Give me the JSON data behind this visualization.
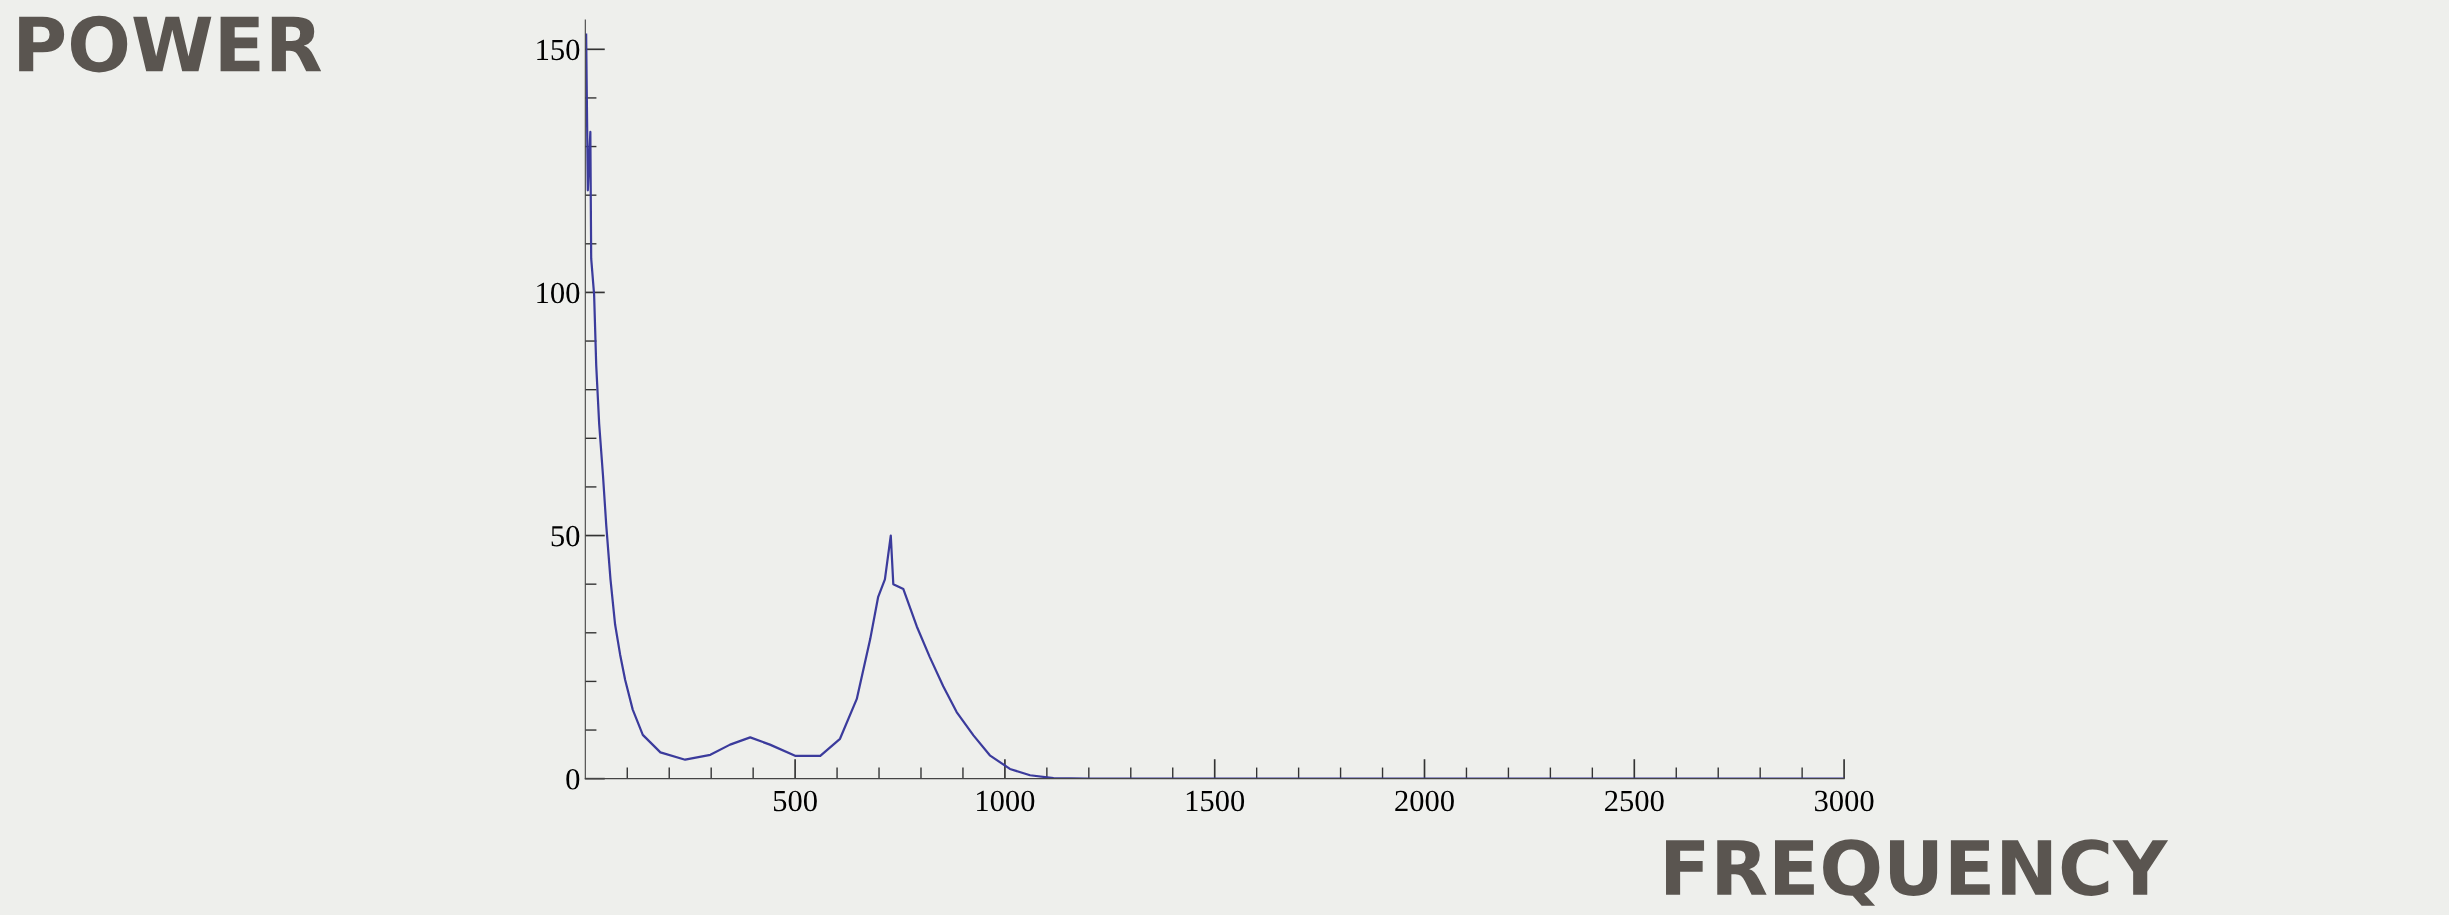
{
  "chart_data": {
    "type": "line",
    "xlabel": "FREQUENCY",
    "ylabel": "POWER",
    "x": [
      2,
      6,
      12,
      14,
      21,
      26,
      33,
      42,
      50,
      60,
      71,
      83,
      95,
      113,
      137,
      179,
      238,
      298,
      345,
      393,
      440,
      500,
      560,
      607,
      647,
      679,
      698,
      714,
      728,
      734,
      758,
      790,
      821,
      853,
      885,
      925,
      964,
      1012,
      1060,
      1116,
      1200,
      1500,
      2000,
      2500,
      3000
    ],
    "series": [
      {
        "color": "#3b3b9c",
        "values": [
          153,
          121,
          133,
          107,
          99.5,
          85,
          73,
          62.5,
          52,
          41,
          31.7,
          25.5,
          20.3,
          14.2,
          9,
          5.4,
          3.9,
          4.9,
          7,
          8.5,
          7,
          4.7,
          4.7,
          8.2,
          16.4,
          28.7,
          37.4,
          41,
          50,
          40,
          39,
          31.3,
          25,
          19,
          13.7,
          8.9,
          4.8,
          2,
          0.7,
          0.1,
          0,
          0,
          0,
          0,
          0
        ]
      }
    ],
    "xlim": [
      0,
      3000
    ],
    "ylim": [
      0,
      156
    ],
    "xticks": [
      {
        "value": 100,
        "label": null
      },
      {
        "value": 200,
        "label": null
      },
      {
        "value": 300,
        "label": null
      },
      {
        "value": 400,
        "label": null
      },
      500,
      {
        "value": 600,
        "label": null
      },
      {
        "value": 700,
        "label": null
      },
      {
        "value": 800,
        "label": null
      },
      {
        "value": 900,
        "label": null
      },
      1000,
      {
        "value": 1100,
        "label": null
      },
      {
        "value": 1200,
        "label": null
      },
      {
        "value": 1300,
        "label": null
      },
      {
        "value": 1400,
        "label": null
      },
      1500,
      {
        "value": 1600,
        "label": null
      },
      {
        "value": 1700,
        "label": null
      },
      {
        "value": 1800,
        "label": null
      },
      {
        "value": 1900,
        "label": null
      },
      2000,
      {
        "value": 2100,
        "label": null
      },
      {
        "value": 2200,
        "label": null
      },
      {
        "value": 2300,
        "label": null
      },
      {
        "value": 2400,
        "label": null
      },
      2500,
      {
        "value": 2600,
        "label": null
      },
      {
        "value": 2700,
        "label": null
      },
      {
        "value": 2800,
        "label": null
      },
      {
        "value": 2900,
        "label": null
      },
      3000
    ],
    "yticks": [
      0,
      {
        "value": 10,
        "label": null
      },
      {
        "value": 20,
        "label": null
      },
      {
        "value": 30,
        "label": null
      },
      {
        "value": 40,
        "label": null
      },
      50,
      {
        "value": 60,
        "label": null
      },
      {
        "value": 70,
        "label": null
      },
      {
        "value": 80,
        "label": null
      },
      {
        "value": 90,
        "label": null
      },
      100,
      {
        "value": 110,
        "label": null
      },
      {
        "value": 120,
        "label": null
      },
      {
        "value": 130,
        "label": null
      },
      {
        "value": 140,
        "label": null
      },
      150
    ],
    "grid": false,
    "legend": false,
    "marker": "none",
    "line_style": "solid"
  }
}
